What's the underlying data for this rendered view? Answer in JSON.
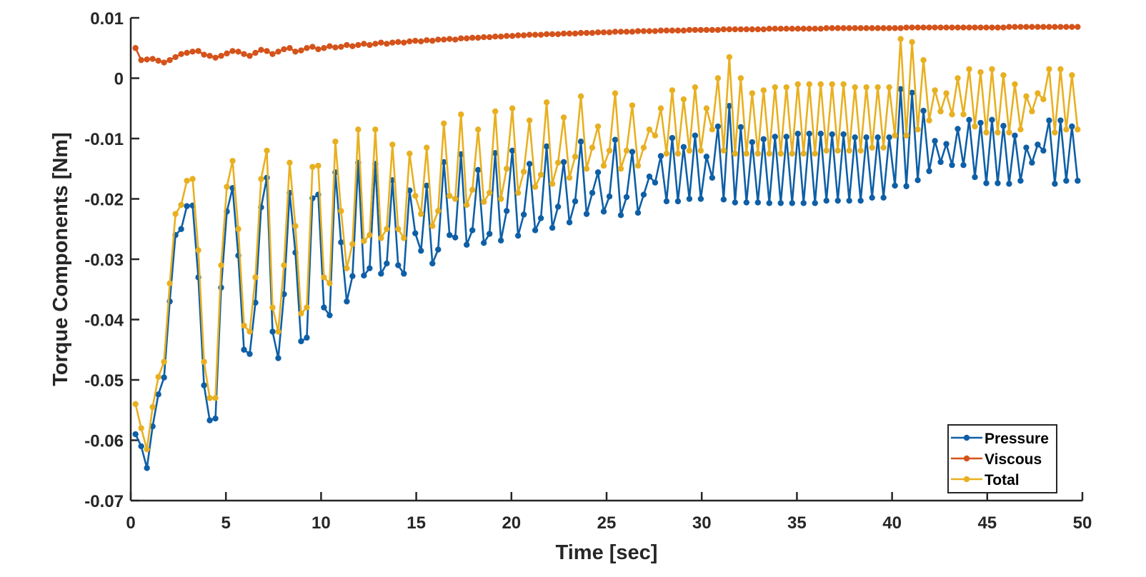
{
  "chart_data": {
    "type": "line",
    "xlabel": "Time [sec]",
    "ylabel": "Torque Components [Nm]",
    "xlim": [
      0,
      50
    ],
    "ylim": [
      -0.07,
      0.01
    ],
    "xticks": [
      0,
      5,
      10,
      15,
      20,
      25,
      30,
      35,
      40,
      45,
      50
    ],
    "yticks": [
      0.01,
      0,
      -0.01,
      -0.02,
      -0.03,
      -0.04,
      -0.05,
      -0.06,
      -0.07
    ],
    "grid": false,
    "legend": "lower right",
    "x": [
      0.25,
      0.55,
      0.85,
      1.15,
      1.45,
      1.75,
      2.05,
      2.35,
      2.65,
      2.95,
      3.25,
      3.55,
      3.85,
      4.15,
      4.45,
      4.75,
      5.05,
      5.35,
      5.65,
      5.95,
      6.25,
      6.55,
      6.85,
      7.15,
      7.45,
      7.75,
      8.05,
      8.35,
      8.65,
      8.95,
      9.25,
      9.55,
      9.85,
      10.15,
      10.45,
      10.75,
      11.05,
      11.35,
      11.65,
      11.95,
      12.25,
      12.55,
      12.85,
      13.15,
      13.45,
      13.75,
      14.05,
      14.35,
      14.65,
      14.95,
      15.25,
      15.55,
      15.85,
      16.15,
      16.45,
      16.75,
      17.05,
      17.35,
      17.65,
      17.95,
      18.25,
      18.55,
      18.85,
      19.15,
      19.45,
      19.75,
      20.05,
      20.35,
      20.65,
      20.95,
      21.25,
      21.55,
      21.85,
      22.15,
      22.45,
      22.75,
      23.05,
      23.35,
      23.65,
      23.95,
      24.25,
      24.55,
      24.85,
      25.15,
      25.45,
      25.75,
      26.05,
      26.35,
      26.65,
      26.95,
      27.25,
      27.55,
      27.85,
      28.15,
      28.45,
      28.75,
      29.05,
      29.35,
      29.65,
      29.95,
      30.25,
      30.55,
      30.85,
      31.15,
      31.45,
      31.75,
      32.05,
      32.35,
      32.65,
      32.95,
      33.25,
      33.55,
      33.85,
      34.15,
      34.45,
      34.75,
      35.05,
      35.35,
      35.65,
      35.95,
      36.25,
      36.55,
      36.85,
      37.15,
      37.45,
      37.75,
      38.05,
      38.35,
      38.65,
      38.95,
      39.25,
      39.55,
      39.85,
      40.15,
      40.45,
      40.75,
      41.05,
      41.35,
      41.65,
      41.95,
      42.25,
      42.55,
      42.85,
      43.15,
      43.45,
      43.75,
      44.05,
      44.35,
      44.65,
      44.95,
      45.25,
      45.55,
      45.85,
      46.15,
      46.45,
      46.75,
      47.05,
      47.35,
      47.65,
      47.95,
      48.25,
      48.55,
      48.85,
      49.15,
      49.45,
      49.75
    ],
    "series": [
      {
        "name": "Pressure",
        "color": "#0e5fa6",
        "values": [
          -0.059,
          -0.061,
          -0.0646,
          -0.0577,
          -0.0524,
          -0.0496,
          -0.037,
          -0.026,
          -0.025,
          -0.0212,
          -0.0211,
          -0.033,
          -0.0509,
          -0.0567,
          -0.0564,
          -0.0347,
          -0.0221,
          -0.0182,
          -0.0294,
          -0.045,
          -0.0457,
          -0.0372,
          -0.0214,
          -0.0165,
          -0.042,
          -0.0464,
          -0.0358,
          -0.019,
          -0.0289,
          -0.0436,
          -0.043,
          -0.0199,
          -0.0193,
          -0.038,
          -0.0393,
          -0.0156,
          -0.0272,
          -0.037,
          -0.0328,
          -0.014,
          -0.0327,
          -0.0315,
          -0.0142,
          -0.0324,
          -0.0307,
          -0.0169,
          -0.031,
          -0.0324,
          -0.0186,
          -0.0257,
          -0.0286,
          -0.0178,
          -0.0307,
          -0.0284,
          -0.0139,
          -0.026,
          -0.0264,
          -0.0126,
          -0.0276,
          -0.0252,
          -0.0152,
          -0.0273,
          -0.0258,
          -0.0124,
          -0.0269,
          -0.022,
          -0.012,
          -0.0261,
          -0.0226,
          -0.0142,
          -0.0252,
          -0.0232,
          -0.0113,
          -0.0248,
          -0.0213,
          -0.0139,
          -0.0239,
          -0.0204,
          -0.0105,
          -0.0225,
          -0.019,
          -0.0156,
          -0.0221,
          -0.0196,
          -0.0102,
          -0.0227,
          -0.0197,
          -0.0122,
          -0.0223,
          -0.0193,
          -0.0163,
          -0.0173,
          -0.0129,
          -0.0204,
          -0.0099,
          -0.0204,
          -0.0114,
          -0.02,
          -0.0095,
          -0.02,
          -0.013,
          -0.0165,
          -0.008,
          -0.0201,
          -0.0046,
          -0.0206,
          -0.0081,
          -0.0206,
          -0.0106,
          -0.0206,
          -0.0101,
          -0.0207,
          -0.0097,
          -0.0207,
          -0.0097,
          -0.0207,
          -0.0092,
          -0.0207,
          -0.0092,
          -0.0207,
          -0.0092,
          -0.0203,
          -0.0093,
          -0.0203,
          -0.0093,
          -0.0203,
          -0.0098,
          -0.0203,
          -0.0098,
          -0.0198,
          -0.0098,
          -0.0198,
          -0.0098,
          -0.0178,
          -0.0018,
          -0.0179,
          -0.0024,
          -0.0169,
          -0.0054,
          -0.0154,
          -0.0104,
          -0.0139,
          -0.0109,
          -0.0144,
          -0.0084,
          -0.0144,
          -0.0069,
          -0.0164,
          -0.0074,
          -0.0174,
          -0.0069,
          -0.0174,
          -0.0079,
          -0.0175,
          -0.0095,
          -0.017,
          -0.0115,
          -0.014,
          -0.011,
          -0.012,
          -0.007,
          -0.0175,
          -0.007,
          -0.017,
          -0.008,
          -0.017
        ]
      },
      {
        "name": "Viscous",
        "color": "#d4531b",
        "values": [
          0.005,
          0.003,
          0.0031,
          0.0032,
          0.0029,
          0.0026,
          0.003,
          0.0035,
          0.004,
          0.0042,
          0.0044,
          0.0045,
          0.0039,
          0.0037,
          0.0034,
          0.0037,
          0.0041,
          0.0045,
          0.0044,
          0.004,
          0.0037,
          0.0042,
          0.0047,
          0.0045,
          0.004,
          0.0044,
          0.0048,
          0.005,
          0.0044,
          0.0046,
          0.005,
          0.0052,
          0.0048,
          0.005,
          0.0053,
          0.0051,
          0.0052,
          0.0055,
          0.0053,
          0.0055,
          0.0057,
          0.0055,
          0.0057,
          0.0059,
          0.0057,
          0.0059,
          0.006,
          0.0059,
          0.0061,
          0.0062,
          0.0061,
          0.0063,
          0.0062,
          0.0064,
          0.0064,
          0.0065,
          0.0064,
          0.0066,
          0.0066,
          0.0067,
          0.0067,
          0.0068,
          0.0068,
          0.0069,
          0.0069,
          0.007,
          0.007,
          0.0071,
          0.0071,
          0.0072,
          0.0072,
          0.0072,
          0.0073,
          0.0073,
          0.0073,
          0.0074,
          0.0074,
          0.0074,
          0.0075,
          0.0075,
          0.0075,
          0.0076,
          0.0076,
          0.0076,
          0.0077,
          0.0077,
          0.0077,
          0.0077,
          0.0078,
          0.0078,
          0.0078,
          0.0078,
          0.0079,
          0.0079,
          0.0079,
          0.0079,
          0.0079,
          0.008,
          0.008,
          0.008,
          0.008,
          0.008,
          0.008,
          0.0081,
          0.0081,
          0.0081,
          0.0081,
          0.0081,
          0.0081,
          0.0081,
          0.0081,
          0.0082,
          0.0082,
          0.0082,
          0.0082,
          0.0082,
          0.0082,
          0.0082,
          0.0082,
          0.0082,
          0.0082,
          0.0083,
          0.0083,
          0.0083,
          0.0083,
          0.0083,
          0.0083,
          0.0083,
          0.0083,
          0.0083,
          0.0083,
          0.0083,
          0.0083,
          0.0083,
          0.0083,
          0.0084,
          0.0084,
          0.0084,
          0.0084,
          0.0084,
          0.0084,
          0.0084,
          0.0084,
          0.0084,
          0.0084,
          0.0084,
          0.0084,
          0.0084,
          0.0084,
          0.0084,
          0.0084,
          0.0084,
          0.0084,
          0.0085,
          0.0085,
          0.0085,
          0.0085,
          0.0085,
          0.0085,
          0.0085,
          0.0085,
          0.0085,
          0.0085,
          0.0085,
          0.0085,
          0.0085
        ]
      },
      {
        "name": "Total",
        "color": "#e8b021",
        "values": [
          -0.054,
          -0.058,
          -0.0615,
          -0.0545,
          -0.0495,
          -0.047,
          -0.034,
          -0.0225,
          -0.021,
          -0.017,
          -0.0167,
          -0.0285,
          -0.047,
          -0.053,
          -0.053,
          -0.031,
          -0.018,
          -0.0137,
          -0.025,
          -0.041,
          -0.042,
          -0.033,
          -0.0167,
          -0.012,
          -0.038,
          -0.042,
          -0.031,
          -0.014,
          -0.0245,
          -0.039,
          -0.038,
          -0.0147,
          -0.0145,
          -0.033,
          -0.034,
          -0.0105,
          -0.022,
          -0.0315,
          -0.0275,
          -0.0085,
          -0.027,
          -0.026,
          -0.0085,
          -0.0265,
          -0.025,
          -0.011,
          -0.025,
          -0.0265,
          -0.0125,
          -0.0195,
          -0.0225,
          -0.0115,
          -0.0245,
          -0.022,
          -0.0075,
          -0.0195,
          -0.02,
          -0.006,
          -0.021,
          -0.0185,
          -0.0085,
          -0.0205,
          -0.019,
          -0.0055,
          -0.02,
          -0.015,
          -0.005,
          -0.019,
          -0.0155,
          -0.007,
          -0.018,
          -0.016,
          -0.004,
          -0.0175,
          -0.014,
          -0.0065,
          -0.0165,
          -0.013,
          -0.003,
          -0.015,
          -0.0115,
          -0.008,
          -0.0145,
          -0.012,
          -0.0025,
          -0.015,
          -0.012,
          -0.0045,
          -0.0145,
          -0.0115,
          -0.0085,
          -0.0095,
          -0.005,
          -0.0125,
          -0.002,
          -0.0125,
          -0.0035,
          -0.012,
          -0.0015,
          -0.012,
          -0.005,
          -0.0085,
          0,
          -0.012,
          0.0035,
          -0.0125,
          0,
          -0.0125,
          -0.0025,
          -0.0125,
          -0.002,
          -0.0125,
          -0.0015,
          -0.0125,
          -0.0015,
          -0.0125,
          -0.001,
          -0.0125,
          -0.001,
          -0.0125,
          -0.001,
          -0.012,
          -0.001,
          -0.012,
          -0.001,
          -0.012,
          -0.0015,
          -0.012,
          -0.0015,
          -0.0115,
          -0.0015,
          -0.0115,
          -0.0015,
          -0.0095,
          0.0065,
          -0.0095,
          0.006,
          -0.0085,
          0.003,
          -0.007,
          -0.002,
          -0.0055,
          -0.0025,
          -0.006,
          0,
          -0.006,
          0.0015,
          -0.008,
          0.001,
          -0.009,
          0.0015,
          -0.009,
          0.0005,
          -0.009,
          -0.001,
          -0.0085,
          -0.003,
          -0.0055,
          -0.0025,
          -0.0035,
          0.0015,
          -0.009,
          0.0015,
          -0.0085,
          0.0005,
          -0.0085
        ]
      }
    ]
  }
}
